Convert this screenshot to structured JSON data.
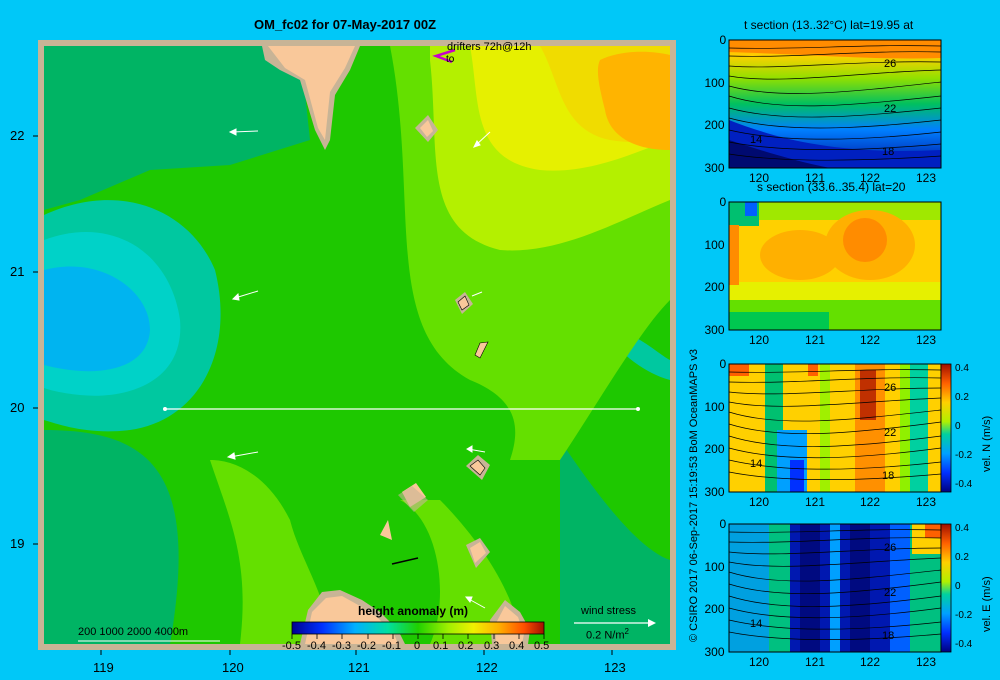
{
  "map": {
    "title": "OM_fc02 for 07-May-2017 00Z",
    "drifters_label": "drifters 72h@12h",
    "drifters_sub": "to",
    "x_ticks": [
      "119",
      "120",
      "121",
      "122",
      "123"
    ],
    "y_ticks": [
      "22",
      "21",
      "20",
      "19"
    ],
    "depth_scale": "200  1000  2000  4000m",
    "wind_label": "wind stress",
    "wind_value": "0.2 N/m",
    "wind_sup": "2",
    "colorbar_title": "height anomaly (m)",
    "colorbar_ticks": [
      "-0.5",
      "-0.4",
      "-0.3",
      "-0.2",
      "-0.1",
      "0",
      "0.1",
      "0.2",
      "0.3",
      "0.4",
      "0.5"
    ],
    "colors": {
      "land": "#f9c89a",
      "frame": "#c8b496",
      "background": "#00c8f8"
    }
  },
  "credit": "© CSIRO 2017    06-Sep-2017 15:19:53 BoM OceanMAPS v3",
  "panels": [
    {
      "title": "t section (13..32°C) lat=19.95 at",
      "y_ticks": [
        "0",
        "100",
        "200",
        "300"
      ],
      "x_ticks": [
        "120",
        "121",
        "122",
        "123"
      ],
      "labels": [
        "26",
        "22",
        "18",
        "14"
      ]
    },
    {
      "title": "s section (33.6..35.4) lat=20",
      "y_ticks": [
        "0",
        "100",
        "200",
        "300"
      ],
      "x_ticks": [
        "120",
        "121",
        "122",
        "123"
      ],
      "labels": []
    },
    {
      "title": "",
      "y_ticks": [
        "0",
        "100",
        "200",
        "300"
      ],
      "x_ticks": [
        "120",
        "121",
        "122",
        "123"
      ],
      "labels": [
        "26",
        "22",
        "18",
        "14"
      ],
      "cbar_ticks": [
        "0.4",
        "0.2",
        "0",
        "-0.2",
        "-0.4"
      ],
      "cbar_label": "vel. N (m/s)"
    },
    {
      "title": "",
      "y_ticks": [
        "0",
        "100",
        "200",
        "300"
      ],
      "x_ticks": [
        "120",
        "121",
        "122",
        "123"
      ],
      "labels": [
        "26",
        "22",
        "18",
        "14"
      ],
      "cbar_ticks": [
        "0.4",
        "0.2",
        "0",
        "-0.2",
        "-0.4"
      ],
      "cbar_label": "vel. E (m/s)"
    }
  ]
}
